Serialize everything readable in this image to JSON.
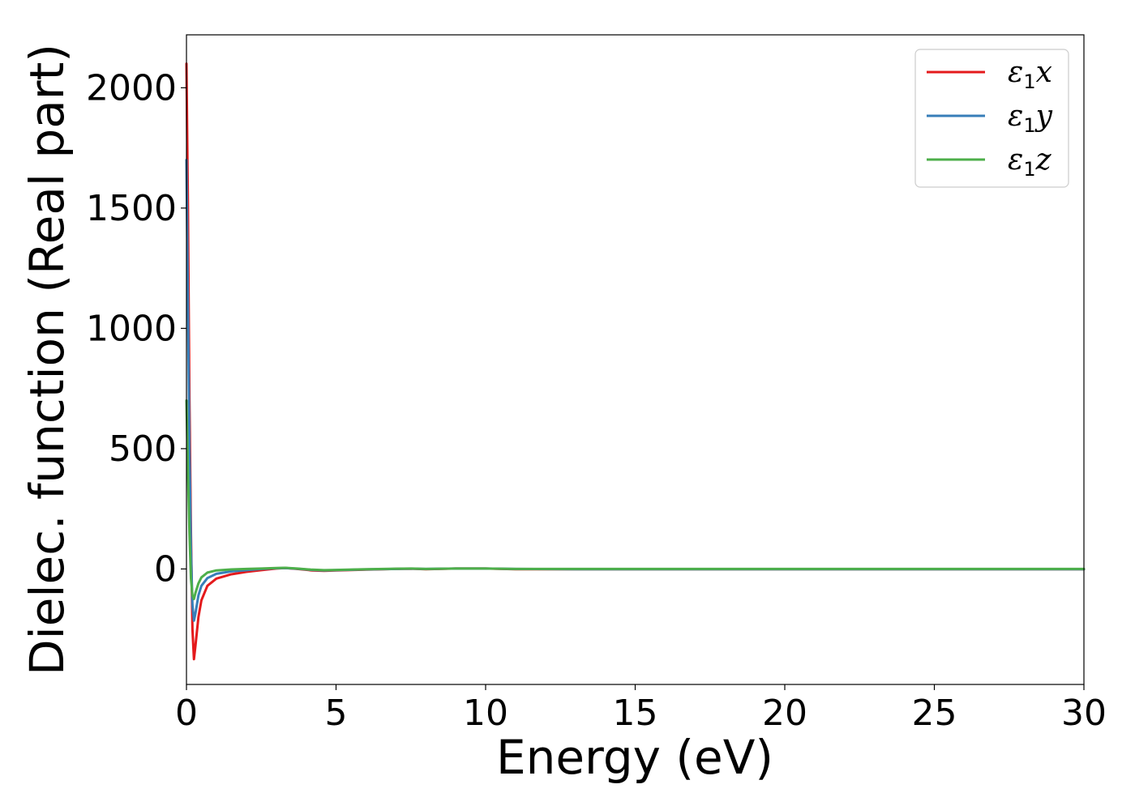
{
  "chart_data": {
    "type": "line",
    "title": "",
    "xlabel": "Energy (eV)",
    "ylabel": "Dielec. function (Real part)",
    "xlim": [
      0,
      30
    ],
    "ylim": [
      -480,
      2220
    ],
    "x_ticks": [
      0,
      5,
      10,
      15,
      20,
      25,
      30
    ],
    "y_ticks": [
      0,
      500,
      1000,
      1500,
      2000
    ],
    "grid": false,
    "legend_position": "top-right",
    "series": [
      {
        "name": "ε1x",
        "legend": {
          "symbol": "ε",
          "sub": "1",
          "suffix": "x"
        },
        "color": "#e41a1c",
        "points": [
          [
            0.0,
            2100
          ],
          [
            0.05,
            1500
          ],
          [
            0.1,
            700
          ],
          [
            0.15,
            150
          ],
          [
            0.2,
            -250
          ],
          [
            0.25,
            -375
          ],
          [
            0.3,
            -320
          ],
          [
            0.4,
            -200
          ],
          [
            0.5,
            -130
          ],
          [
            0.7,
            -70
          ],
          [
            1.0,
            -40
          ],
          [
            1.5,
            -22
          ],
          [
            2.0,
            -12
          ],
          [
            2.5,
            -5
          ],
          [
            3.0,
            2
          ],
          [
            3.3,
            4
          ],
          [
            3.7,
            0
          ],
          [
            4.2,
            -6
          ],
          [
            4.6,
            -8
          ],
          [
            5.0,
            -6
          ],
          [
            6.0,
            -3
          ],
          [
            7.0,
            0
          ],
          [
            7.5,
            1
          ],
          [
            8.0,
            -1
          ],
          [
            9.0,
            2
          ],
          [
            10.0,
            2
          ],
          [
            11.0,
            -1
          ],
          [
            13.0,
            -1
          ],
          [
            20.0,
            -1
          ],
          [
            30.0,
            -1
          ]
        ]
      },
      {
        "name": "ε1y",
        "legend": {
          "symbol": "ε",
          "sub": "1",
          "suffix": "y"
        },
        "color": "#377eb8",
        "points": [
          [
            0.0,
            1700
          ],
          [
            0.05,
            1100
          ],
          [
            0.1,
            500
          ],
          [
            0.15,
            80
          ],
          [
            0.2,
            -150
          ],
          [
            0.25,
            -215
          ],
          [
            0.3,
            -185
          ],
          [
            0.4,
            -110
          ],
          [
            0.5,
            -70
          ],
          [
            0.7,
            -38
          ],
          [
            1.0,
            -20
          ],
          [
            1.5,
            -10
          ],
          [
            2.0,
            -5
          ],
          [
            2.5,
            0
          ],
          [
            3.0,
            3
          ],
          [
            3.3,
            4
          ],
          [
            3.7,
            1
          ],
          [
            4.2,
            -4
          ],
          [
            4.6,
            -6
          ],
          [
            5.0,
            -5
          ],
          [
            6.0,
            -2
          ],
          [
            7.0,
            0
          ],
          [
            7.5,
            1
          ],
          [
            8.0,
            0
          ],
          [
            9.0,
            2
          ],
          [
            10.0,
            2
          ],
          [
            11.0,
            0
          ],
          [
            13.0,
            -1
          ],
          [
            20.0,
            -1
          ],
          [
            30.0,
            -1
          ]
        ]
      },
      {
        "name": "ε1z",
        "legend": {
          "symbol": "ε",
          "sub": "1",
          "suffix": "z"
        },
        "color": "#4daf4a",
        "points": [
          [
            0.0,
            700
          ],
          [
            0.05,
            400
          ],
          [
            0.1,
            150
          ],
          [
            0.15,
            -40
          ],
          [
            0.2,
            -110
          ],
          [
            0.25,
            -125
          ],
          [
            0.3,
            -100
          ],
          [
            0.4,
            -60
          ],
          [
            0.5,
            -35
          ],
          [
            0.7,
            -15
          ],
          [
            1.0,
            -6
          ],
          [
            1.5,
            -2
          ],
          [
            2.0,
            0
          ],
          [
            2.5,
            2
          ],
          [
            3.0,
            4
          ],
          [
            3.3,
            5
          ],
          [
            3.7,
            2
          ],
          [
            4.2,
            -3
          ],
          [
            4.6,
            -5
          ],
          [
            5.0,
            -4
          ],
          [
            6.0,
            -1
          ],
          [
            7.0,
            1
          ],
          [
            7.5,
            2
          ],
          [
            8.0,
            0
          ],
          [
            9.0,
            2
          ],
          [
            10.0,
            2
          ],
          [
            11.0,
            0
          ],
          [
            13.0,
            0
          ],
          [
            20.0,
            0
          ],
          [
            30.0,
            0
          ]
        ]
      }
    ]
  }
}
